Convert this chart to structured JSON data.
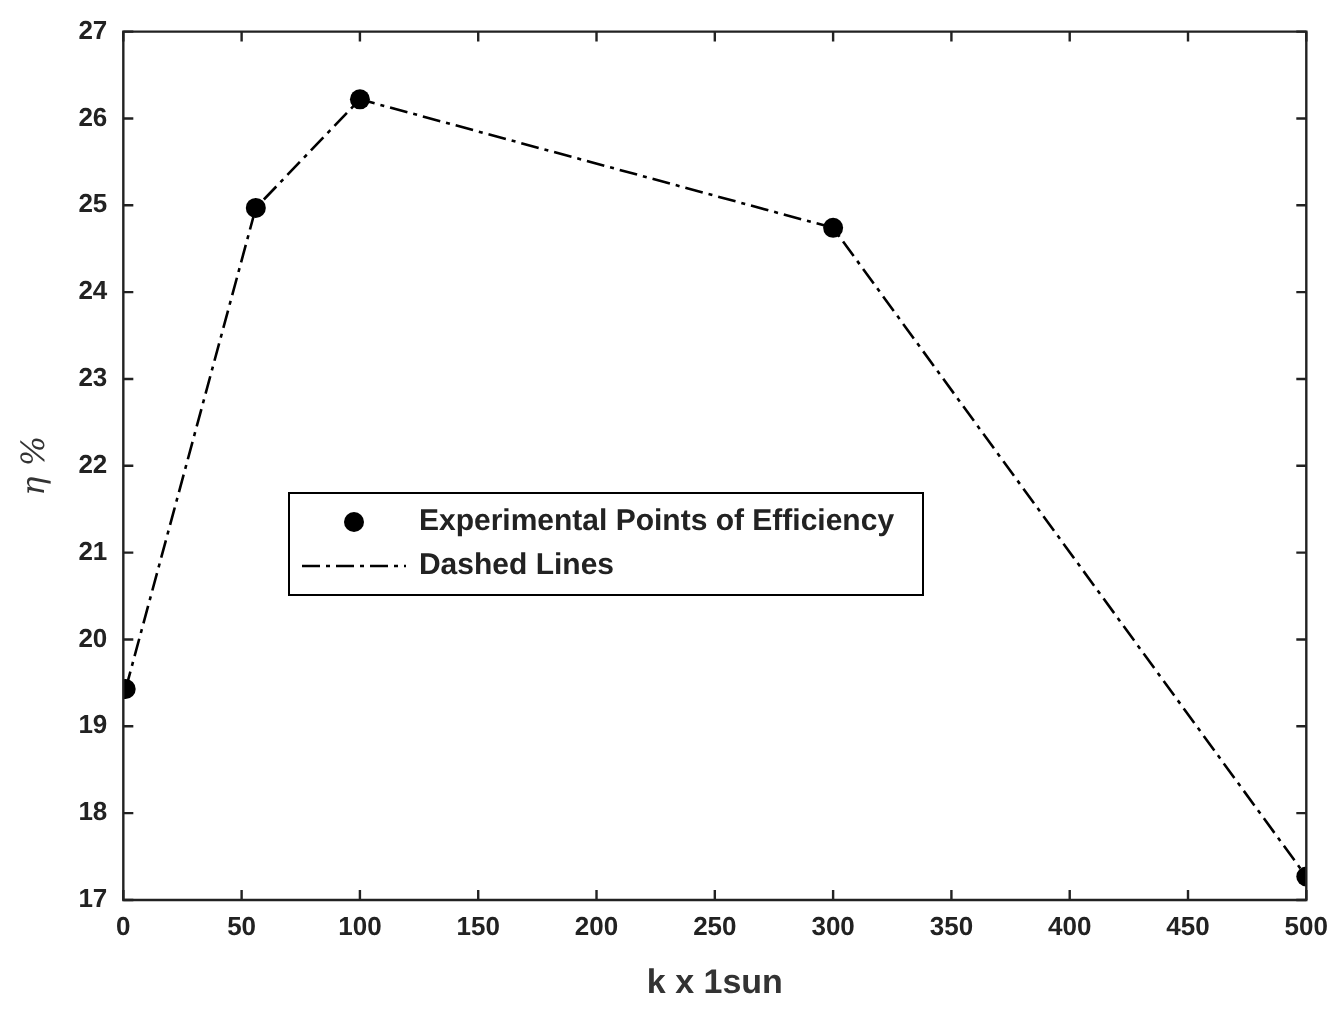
{
  "chart_data": {
    "type": "line",
    "xlabel": "k x 1sun",
    "ylabel": "η %",
    "x": [
      1,
      56,
      100,
      300,
      500
    ],
    "series": [
      {
        "type": "scatter",
        "name": "Experimental Points of Efficiency",
        "color": "#000000",
        "values": [
          19.43,
          24.97,
          26.22,
          24.74,
          17.27
        ],
        "marker": "circle"
      },
      {
        "type": "line",
        "name": "Dashed Lines",
        "color": "#000000",
        "values": [
          19.43,
          24.97,
          26.22,
          24.74,
          17.27
        ],
        "marker": "none",
        "line_style": "dashed"
      }
    ],
    "xlim": [
      0,
      500
    ],
    "xticks": [
      0,
      50,
      100,
      150,
      200,
      250,
      300,
      350,
      400,
      450,
      500
    ],
    "ylim": [
      17,
      27
    ],
    "yticks": [
      17,
      18,
      19,
      20,
      21,
      22,
      23,
      24,
      25,
      26,
      27
    ],
    "grid": false,
    "legend": "left"
  }
}
